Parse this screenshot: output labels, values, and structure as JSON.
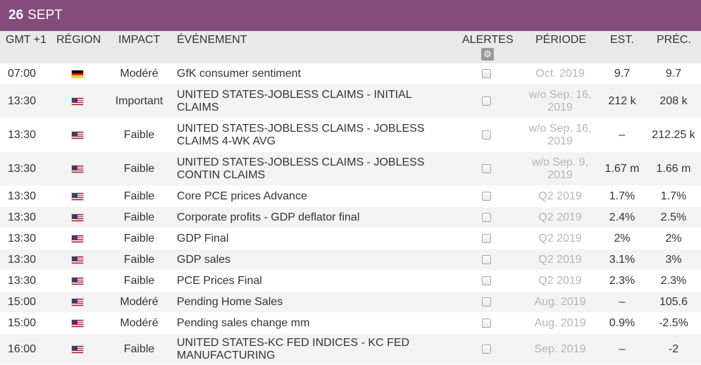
{
  "banner": {
    "day": "26",
    "month": "SEPT"
  },
  "columns": {
    "time": "GMT +1",
    "region": "RÉGION",
    "impact": "IMPACT",
    "event": "ÉVÉNEMENT",
    "alerts": "ALERTES",
    "period": "PÉRIODE",
    "est": "EST.",
    "prev": "PRÉC."
  },
  "alerts_settings_icon": "gear-icon",
  "colors": {
    "banner": "#834c7c",
    "header_bg": "#e9e9e9",
    "alt_row": "#f3f3f3",
    "period_text": "#b5b5b5"
  },
  "rows": [
    {
      "time": "07:00",
      "country": "de",
      "impact": "Modéré",
      "event": "GfK consumer sentiment",
      "period": "Oct. 2019",
      "est": "9.7",
      "prev": "9.7"
    },
    {
      "time": "13:30",
      "country": "us",
      "impact": "Important",
      "event": "UNITED STATES-JOBLESS CLAIMS - INITIAL CLAIMS",
      "period": "w/o Sep. 16, 2019",
      "est": "212 k",
      "prev": "208 k"
    },
    {
      "time": "13:30",
      "country": "us",
      "impact": "Faible",
      "event": "UNITED STATES-JOBLESS CLAIMS - JOBLESS CLAIMS 4-WK AVG",
      "period": "w/o Sep. 16, 2019",
      "est": "–",
      "prev": "212.25 k"
    },
    {
      "time": "13:30",
      "country": "us",
      "impact": "Faible",
      "event": "UNITED STATES-JOBLESS CLAIMS - JOBLESS CONTIN CLAIMS",
      "period": "w/o Sep. 9, 2019",
      "est": "1.67 m",
      "prev": "1.66 m"
    },
    {
      "time": "13:30",
      "country": "us",
      "impact": "Faible",
      "event": "Core PCE prices Advance",
      "period": "Q2 2019",
      "est": "1.7%",
      "prev": "1.7%"
    },
    {
      "time": "13:30",
      "country": "us",
      "impact": "Faible",
      "event": "Corporate profits - GDP deflator final",
      "period": "Q2 2019",
      "est": "2.4%",
      "prev": "2.5%"
    },
    {
      "time": "13:30",
      "country": "us",
      "impact": "Faible",
      "event": "GDP Final",
      "period": "Q2 2019",
      "est": "2%",
      "prev": "2%"
    },
    {
      "time": "13:30",
      "country": "us",
      "impact": "Faible",
      "event": "GDP sales",
      "period": "Q2 2019",
      "est": "3.1%",
      "prev": "3%"
    },
    {
      "time": "13:30",
      "country": "us",
      "impact": "Faible",
      "event": "PCE Prices Final",
      "period": "Q2 2019",
      "est": "2.3%",
      "prev": "2.3%"
    },
    {
      "time": "15:00",
      "country": "us",
      "impact": "Modéré",
      "event": "Pending Home Sales",
      "period": "Aug. 2019",
      "est": "–",
      "prev": "105.6"
    },
    {
      "time": "15:00",
      "country": "us",
      "impact": "Modéré",
      "event": "Pending sales change mm",
      "period": "Aug. 2019",
      "est": "0.9%",
      "prev": "-2.5%"
    },
    {
      "time": "16:00",
      "country": "us",
      "impact": "Faible",
      "event": "UNITED STATES-KC FED INDICES - KC FED MANUFACTURING",
      "period": "Sep. 2019",
      "est": "–",
      "prev": "-2"
    }
  ]
}
